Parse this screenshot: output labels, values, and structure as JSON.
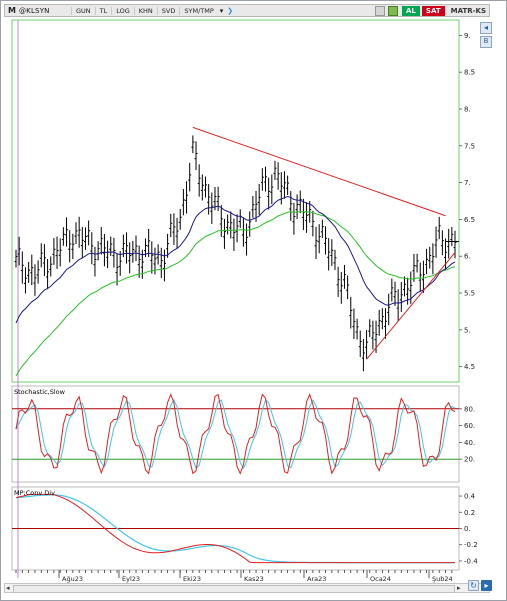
{
  "toolbar": {
    "logo": "M",
    "symbol": "@KLSYN",
    "buttons": [
      "GUN",
      "TL",
      "LOG",
      "KHN",
      "SVD",
      "SYM/TMP"
    ],
    "buy": "AL",
    "sell": "SAT",
    "matrix": "MATR-KS"
  },
  "price_axis": {
    "labels": [
      "9.",
      "8.5",
      "8.",
      "7.5",
      "7.",
      "6.5",
      "6.",
      "5.5",
      "5.",
      "4.5"
    ]
  },
  "stoch": {
    "title": "Stochastic,Slow",
    "axis": [
      "80.",
      "60.",
      "40.",
      "20."
    ]
  },
  "macd": {
    "title": "MP;Conv Div",
    "axis": [
      "0.4",
      "0.2",
      "0.",
      "-0.2",
      "-0.4"
    ]
  },
  "date_labels": [
    "Ağu23",
    "Eyl23",
    "Eki23",
    "Kas23",
    "Ara23",
    "Oca24",
    "Şub24"
  ],
  "colors": {
    "price": "#000000",
    "ma_fast": "#1a1a8c",
    "ma_slow": "#27c227",
    "trend": "#e02020",
    "stoch_k": "#e02020",
    "stoch_d": "#3ec8ea",
    "border": "#6ccf6c",
    "bands": "#b00000"
  },
  "chart_data": {
    "type": "line",
    "y_axis_price": {
      "range": [
        4.4,
        9.1
      ]
    },
    "stoch_levels": [
      20,
      80
    ],
    "macd_range": [
      -0.45,
      0.45
    ]
  }
}
